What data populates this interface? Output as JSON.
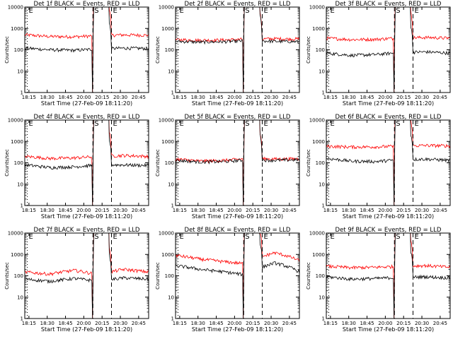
{
  "figure": {
    "background": "#ffffff",
    "axis_color": "#000000",
    "events_color": "#000000",
    "lld_color": "#ff0000"
  },
  "chart_data": [
    {
      "type": "line",
      "title": "Det 1f BLACK = Events, RED = LLD",
      "xlabel": "Start Time (27-Feb-09 18:11:20)",
      "ylabel": "Counts/sec",
      "x_ticks": [
        "18:15",
        "18:30",
        "18:45",
        "20:00",
        "20:15",
        "20:30",
        "20:45"
      ],
      "y_scale": "log",
      "ylim": [
        1,
        10000
      ],
      "y_ticks": [
        "1",
        "10",
        "100",
        "1000",
        "10000"
      ],
      "markers": [
        {
          "label": "E",
          "x": 0.02,
          "style": "dotted"
        },
        {
          "label": "S",
          "x": 0.55,
          "style": "dashed"
        },
        {
          "label": "E",
          "x": 0.7,
          "style": "dashed"
        }
      ],
      "series": [
        {
          "name": "LLD",
          "level": [
            500,
            420,
            410,
            460,
            500,
            480
          ],
          "burst": true
        },
        {
          "name": "Events",
          "level": [
            120,
            100,
            95,
            110,
            120,
            115
          ],
          "burst": true
        }
      ]
    },
    {
      "type": "line",
      "title": "Det 2f BLACK = Events, RED = LLD",
      "xlabel": "Start Time (27-Feb-09 18:11:20)",
      "ylabel": "Counts/sec",
      "x_ticks": [
        "18:15",
        "18:30",
        "18:45",
        "20:00",
        "20:15",
        "20:30",
        "20:45"
      ],
      "y_scale": "log",
      "ylim": [
        1,
        10000
      ],
      "y_ticks": [
        "1",
        "10",
        "100",
        "1000",
        "10000"
      ],
      "markers": [
        {
          "label": "E",
          "x": 0.02,
          "style": "dotted"
        },
        {
          "label": "S",
          "x": 0.55,
          "style": "dashed"
        },
        {
          "label": "E",
          "x": 0.7,
          "style": "dashed"
        }
      ],
      "series": [
        {
          "name": "LLD",
          "level": [
            300,
            280,
            290,
            320,
            330,
            320
          ],
          "burst": true
        },
        {
          "name": "Events",
          "level": [
            250,
            230,
            240,
            270,
            250,
            240
          ],
          "burst": true
        }
      ]
    },
    {
      "type": "line",
      "title": "Det 3f BLACK = Events, RED = LLD",
      "xlabel": "Start Time (27-Feb-09 18:11:20)",
      "ylabel": "Counts/sec",
      "x_ticks": [
        "18:15",
        "18:30",
        "18:45",
        "20:00",
        "20:15",
        "20:30",
        "20:45"
      ],
      "y_scale": "log",
      "ylim": [
        1,
        10000
      ],
      "y_ticks": [
        "1",
        "10",
        "100",
        "1000",
        "10000"
      ],
      "markers": [
        {
          "label": "E",
          "x": 0.02,
          "style": "dotted"
        },
        {
          "label": "S",
          "x": 0.55,
          "style": "dashed"
        },
        {
          "label": "E",
          "x": 0.7,
          "style": "dashed"
        }
      ],
      "series": [
        {
          "name": "LLD",
          "level": [
            350,
            300,
            310,
            360,
            380,
            350
          ],
          "burst": true
        },
        {
          "name": "Events",
          "level": [
            70,
            55,
            60,
            75,
            80,
            70
          ],
          "burst": true
        }
      ]
    },
    {
      "type": "line",
      "title": "Det 4f BLACK = Events, RED = LLD",
      "xlabel": "Start Time (27-Feb-09 18:11:20)",
      "ylabel": "Counts/sec",
      "x_ticks": [
        "18:15",
        "18:30",
        "18:45",
        "20:00",
        "20:15",
        "20:30",
        "20:45"
      ],
      "y_scale": "log",
      "ylim": [
        1,
        10000
      ],
      "y_ticks": [
        "1",
        "10",
        "100",
        "1000",
        "10000"
      ],
      "markers": [
        {
          "label": "E",
          "x": 0.02,
          "style": "dotted"
        },
        {
          "label": "S",
          "x": 0.55,
          "style": "dashed"
        },
        {
          "label": "E",
          "x": 0.7,
          "style": "dashed"
        }
      ],
      "series": [
        {
          "name": "LLD",
          "level": [
            200,
            160,
            170,
            200,
            220,
            200
          ],
          "burst": true
        },
        {
          "name": "Events",
          "level": [
            80,
            60,
            65,
            80,
            80,
            75
          ],
          "burst": true
        }
      ]
    },
    {
      "type": "line",
      "title": "Det 5f BLACK = Events, RED = LLD",
      "xlabel": "Start Time (27-Feb-09 18:11:20)",
      "ylabel": "Counts/sec",
      "x_ticks": [
        "18:15",
        "18:30",
        "18:45",
        "20:00",
        "20:15",
        "20:30",
        "20:45"
      ],
      "y_scale": "log",
      "ylim": [
        1,
        10000
      ],
      "y_ticks": [
        "1",
        "10",
        "100",
        "1000",
        "10000"
      ],
      "markers": [
        {
          "label": "E",
          "x": 0.02,
          "style": "dotted"
        },
        {
          "label": "S",
          "x": 0.55,
          "style": "dashed"
        },
        {
          "label": "E",
          "x": 0.7,
          "style": "dashed"
        }
      ],
      "series": [
        {
          "name": "LLD",
          "level": [
            150,
            120,
            130,
            160,
            150,
            155
          ],
          "burst": true
        },
        {
          "name": "Events",
          "level": [
            130,
            110,
            115,
            140,
            130,
            140
          ],
          "burst": true
        }
      ]
    },
    {
      "type": "line",
      "title": "Det 6f BLACK = Events, RED = LLD",
      "xlabel": "Start Time (27-Feb-09 18:11:20)",
      "ylabel": "Counts/sec",
      "x_ticks": [
        "18:15",
        "18:30",
        "18:45",
        "20:00",
        "20:15",
        "20:30",
        "20:45"
      ],
      "y_scale": "log",
      "ylim": [
        1,
        10000
      ],
      "y_ticks": [
        "1",
        "10",
        "100",
        "1000",
        "10000"
      ],
      "markers": [
        {
          "label": "E",
          "x": 0.02,
          "style": "dotted"
        },
        {
          "label": "S",
          "x": 0.55,
          "style": "dashed"
        },
        {
          "label": "E",
          "x": 0.7,
          "style": "dashed"
        }
      ],
      "series": [
        {
          "name": "LLD",
          "level": [
            600,
            550,
            560,
            600,
            650,
            620
          ],
          "burst": true
        },
        {
          "name": "Events",
          "level": [
            160,
            120,
            115,
            140,
            150,
            130
          ],
          "burst": true
        }
      ]
    },
    {
      "type": "line",
      "title": "Det 7f BLACK = Events, RED = LLD",
      "xlabel": "Start Time (27-Feb-09 18:11:20)",
      "ylabel": "Counts/sec",
      "x_ticks": [
        "18:15",
        "18:30",
        "18:45",
        "20:00",
        "20:15",
        "20:30",
        "20:45"
      ],
      "y_scale": "log",
      "ylim": [
        1,
        10000
      ],
      "y_ticks": [
        "1",
        "10",
        "100",
        "1000",
        "10000"
      ],
      "markers": [
        {
          "label": "E",
          "x": 0.02,
          "style": "dotted"
        },
        {
          "label": "S",
          "x": 0.55,
          "style": "dashed"
        },
        {
          "label": "E",
          "x": 0.7,
          "style": "dashed"
        }
      ],
      "series": [
        {
          "name": "LLD",
          "level": [
            150,
            120,
            180,
            110,
            200,
            150
          ],
          "burst": true
        },
        {
          "name": "Events",
          "level": [
            70,
            55,
            75,
            55,
            80,
            70
          ],
          "burst": true
        }
      ]
    },
    {
      "type": "line",
      "title": "Det 8f BLACK = Events, RED = LLD",
      "xlabel": "Start Time (27-Feb-09 18:11:20)",
      "ylabel": "Counts/sec",
      "x_ticks": [
        "18:15",
        "18:30",
        "18:45",
        "20:00",
        "20:15",
        "20:30",
        "20:45"
      ],
      "y_scale": "log",
      "ylim": [
        1,
        10000
      ],
      "y_ticks": [
        "1",
        "10",
        "100",
        "1000",
        "10000"
      ],
      "markers": [
        {
          "label": "E",
          "x": 0.02,
          "style": "dotted"
        },
        {
          "label": "S",
          "x": 0.55,
          "style": "dashed"
        },
        {
          "label": "E",
          "x": 0.7,
          "style": "dashed"
        }
      ],
      "series": [
        {
          "name": "LLD",
          "level": [
            900,
            600,
            450,
            350,
            1200,
            500
          ],
          "burst": true
        },
        {
          "name": "Events",
          "level": [
            300,
            200,
            150,
            100,
            400,
            150
          ],
          "burst": true
        }
      ]
    },
    {
      "type": "line",
      "title": "Det 9f BLACK = Events, RED = LLD",
      "xlabel": "Start Time (27-Feb-09 18:11:20)",
      "ylabel": "Counts/sec",
      "x_ticks": [
        "18:15",
        "18:30",
        "18:45",
        "20:00",
        "20:15",
        "20:30",
        "20:45"
      ],
      "y_scale": "log",
      "ylim": [
        1,
        10000
      ],
      "y_ticks": [
        "1",
        "10",
        "100",
        "1000",
        "10000"
      ],
      "markers": [
        {
          "label": "E",
          "x": 0.02,
          "style": "dotted"
        },
        {
          "label": "S",
          "x": 0.55,
          "style": "dashed"
        },
        {
          "label": "E",
          "x": 0.7,
          "style": "dashed"
        }
      ],
      "series": [
        {
          "name": "LLD",
          "level": [
            280,
            240,
            250,
            280,
            300,
            250
          ],
          "burst": true
        },
        {
          "name": "Events",
          "level": [
            90,
            70,
            75,
            85,
            90,
            80
          ],
          "burst": true
        }
      ]
    }
  ]
}
